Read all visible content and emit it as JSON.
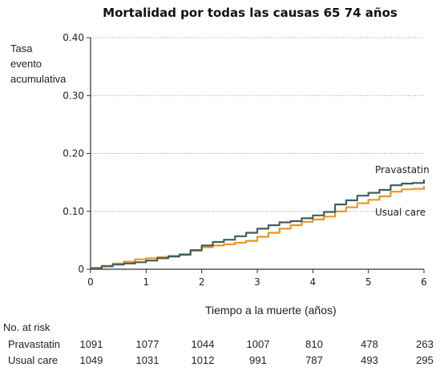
{
  "chart_data": {
    "type": "line",
    "title": "Mortalidad por todas las causas 65  74 años",
    "ylabel": "Tasa\nevento\nacumulativa",
    "xlabel": "Tiempo a la muerte (años)",
    "xlim": [
      0,
      6
    ],
    "ylim": [
      0,
      0.4
    ],
    "x_ticks": [
      "0",
      "1",
      "2",
      "3",
      "4",
      "5",
      "6"
    ],
    "y_ticks": [
      "0",
      "0.10",
      "0.20",
      "0.30",
      "0.40"
    ],
    "grid": "horizontal-dotted",
    "series": [
      {
        "name": "Pravastatin",
        "color": "#3f5f5b",
        "points": [
          [
            0,
            0.002
          ],
          [
            0.2,
            0.005
          ],
          [
            0.4,
            0.008
          ],
          [
            0.6,
            0.01
          ],
          [
            0.8,
            0.012
          ],
          [
            1.0,
            0.015
          ],
          [
            1.2,
            0.019
          ],
          [
            1.4,
            0.022
          ],
          [
            1.6,
            0.025
          ],
          [
            1.8,
            0.033
          ],
          [
            2.0,
            0.041
          ],
          [
            2.2,
            0.047
          ],
          [
            2.4,
            0.051
          ],
          [
            2.6,
            0.057
          ],
          [
            2.8,
            0.063
          ],
          [
            3.0,
            0.07
          ],
          [
            3.2,
            0.076
          ],
          [
            3.4,
            0.081
          ],
          [
            3.6,
            0.083
          ],
          [
            3.8,
            0.088
          ],
          [
            4.0,
            0.093
          ],
          [
            4.2,
            0.099
          ],
          [
            4.4,
            0.112
          ],
          [
            4.6,
            0.119
          ],
          [
            4.8,
            0.127
          ],
          [
            5.0,
            0.132
          ],
          [
            5.2,
            0.137
          ],
          [
            5.4,
            0.145
          ],
          [
            5.6,
            0.148
          ],
          [
            5.8,
            0.149
          ],
          [
            6.0,
            0.155
          ]
        ]
      },
      {
        "name": "Usual care",
        "color": "#e8952a",
        "points": [
          [
            0,
            0.002
          ],
          [
            0.2,
            0.006
          ],
          [
            0.4,
            0.01
          ],
          [
            0.6,
            0.013
          ],
          [
            0.8,
            0.017
          ],
          [
            1.0,
            0.019
          ],
          [
            1.2,
            0.021
          ],
          [
            1.4,
            0.023
          ],
          [
            1.6,
            0.026
          ],
          [
            1.8,
            0.032
          ],
          [
            2.0,
            0.038
          ],
          [
            2.2,
            0.041
          ],
          [
            2.4,
            0.043
          ],
          [
            2.6,
            0.046
          ],
          [
            2.8,
            0.049
          ],
          [
            3.0,
            0.056
          ],
          [
            3.2,
            0.063
          ],
          [
            3.4,
            0.07
          ],
          [
            3.6,
            0.076
          ],
          [
            3.8,
            0.082
          ],
          [
            4.0,
            0.086
          ],
          [
            4.2,
            0.091
          ],
          [
            4.4,
            0.1
          ],
          [
            4.6,
            0.107
          ],
          [
            4.8,
            0.114
          ],
          [
            5.0,
            0.12
          ],
          [
            5.2,
            0.126
          ],
          [
            5.4,
            0.134
          ],
          [
            5.6,
            0.138
          ],
          [
            5.8,
            0.139
          ],
          [
            6.0,
            0.144
          ]
        ]
      }
    ]
  },
  "risk_table": {
    "title": "No. at risk",
    "rows": [
      {
        "label": "Pravastatin",
        "values": [
          "1091",
          "1077",
          "1044",
          "1007",
          "810",
          "478",
          "263"
        ]
      },
      {
        "label": "Usual care",
        "values": [
          "1049",
          "1031",
          "1012",
          "991",
          "787",
          "493",
          "295"
        ]
      }
    ]
  }
}
